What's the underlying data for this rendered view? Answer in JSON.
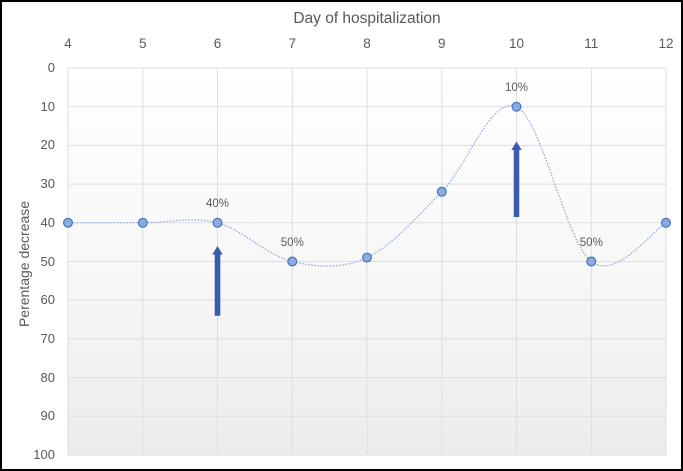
{
  "figure": {
    "border_color": "#000000",
    "background": "#ffffff"
  },
  "chart": {
    "colors": {
      "text": "#595959",
      "gridline": "#dedede",
      "line": "#9db3e0",
      "marker_fill": "#8faadc",
      "marker_border": "#4472c4",
      "arrow": "#3a5da9",
      "plot_gradient_top": "#ffffff",
      "plot_gradient_bottom": "#ececec"
    }
  },
  "chart_data": {
    "type": "line",
    "title": "Day of hospitalization",
    "xlabel": "Day of hospitalization",
    "ylabel": "Perentage decrease",
    "x_axis_position": "top",
    "y_axis_reversed": true,
    "x": [
      4,
      5,
      6,
      7,
      8,
      9,
      10,
      11,
      12
    ],
    "series": [
      {
        "name": "Percentage decrease",
        "values": [
          40,
          40,
          40,
          50,
          49,
          32,
          10,
          50,
          40
        ]
      }
    ],
    "point_labels": [
      null,
      null,
      "40%",
      "50%",
      null,
      null,
      "10%",
      "50%",
      null
    ],
    "ylim": [
      0,
      100
    ],
    "y_ticks": [
      0,
      10,
      20,
      30,
      40,
      50,
      60,
      70,
      80,
      90,
      100
    ],
    "grid": true,
    "legend": "none",
    "line_style": "smooth-dotted",
    "annotations": [
      {
        "type": "up-arrow",
        "x": 6,
        "y_tail": 64,
        "y_tip": 46
      },
      {
        "type": "up-arrow",
        "x": 10,
        "y_tail": 38.5,
        "y_tip": 19
      }
    ]
  }
}
